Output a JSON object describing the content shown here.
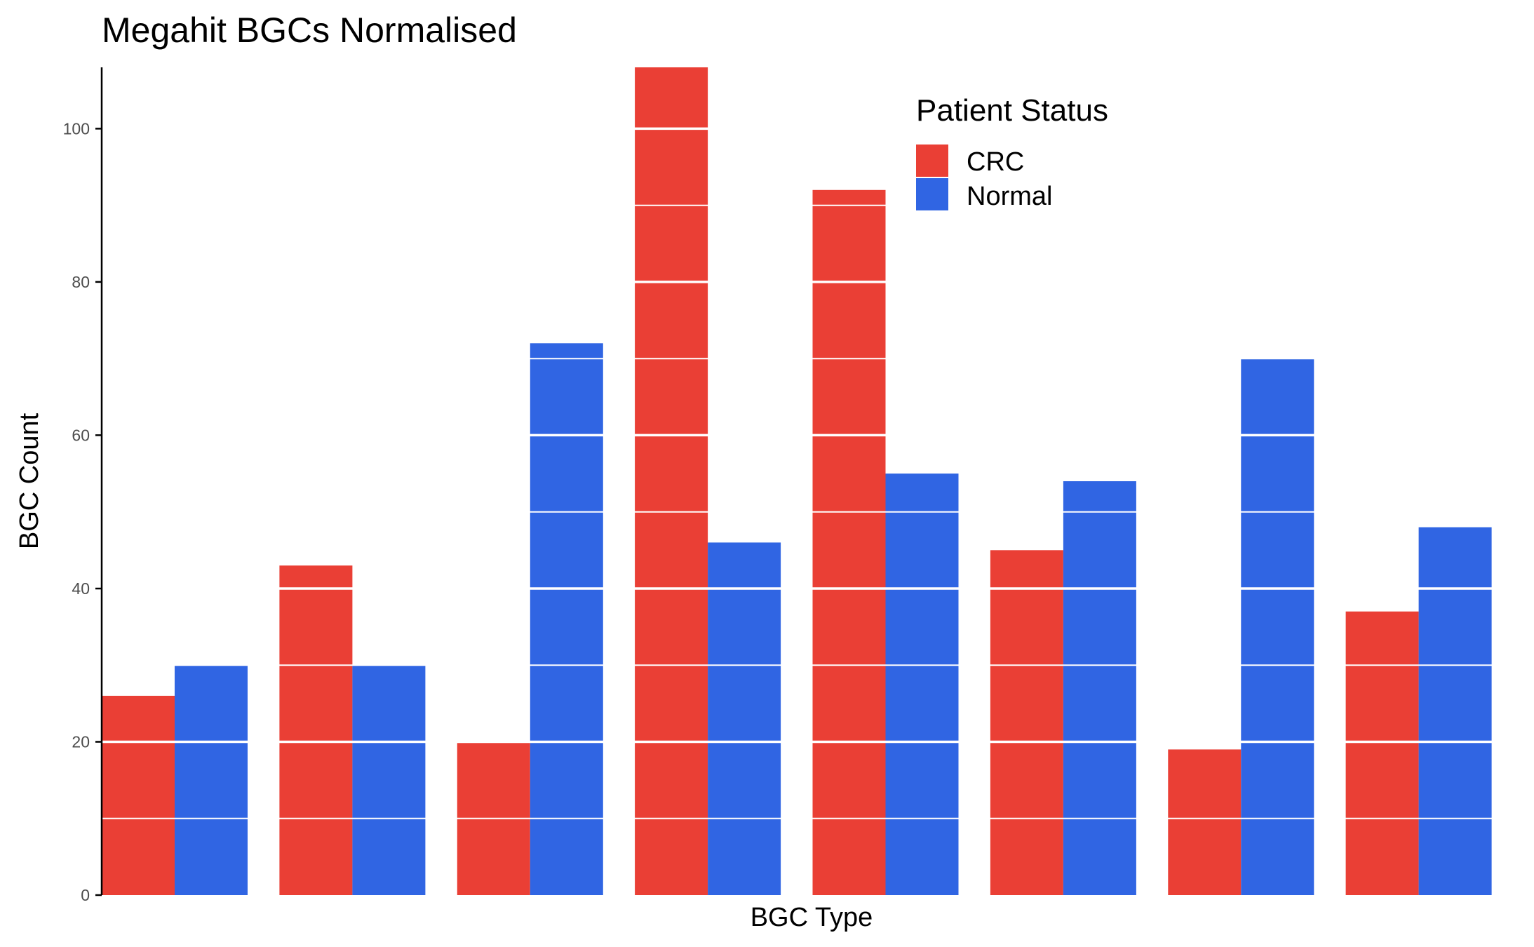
{
  "colors": {
    "crc": "#EA3F35",
    "normal": "#3065E3",
    "gridline": "#ffffff",
    "axis": "#000000"
  },
  "chart_data": {
    "type": "bar",
    "title": "Megahit BGCs Normalised",
    "xlabel": "BGC Type",
    "ylabel": "BGC Count",
    "ylim": [
      0,
      108
    ],
    "yticks": [
      0,
      20,
      40,
      60,
      80,
      100
    ],
    "grid": "white lines every 10 units drawn over bars",
    "categories": [
      "",
      "",
      "",
      "",
      "",
      "",
      "",
      ""
    ],
    "series": [
      {
        "name": "CRC",
        "values": [
          26,
          43,
          20,
          108,
          92,
          45,
          19,
          37
        ]
      },
      {
        "name": "Normal",
        "values": [
          30,
          30,
          72,
          46,
          55,
          54,
          70,
          48
        ]
      }
    ],
    "legend": {
      "title": "Patient Status",
      "placement": "top-right"
    }
  }
}
